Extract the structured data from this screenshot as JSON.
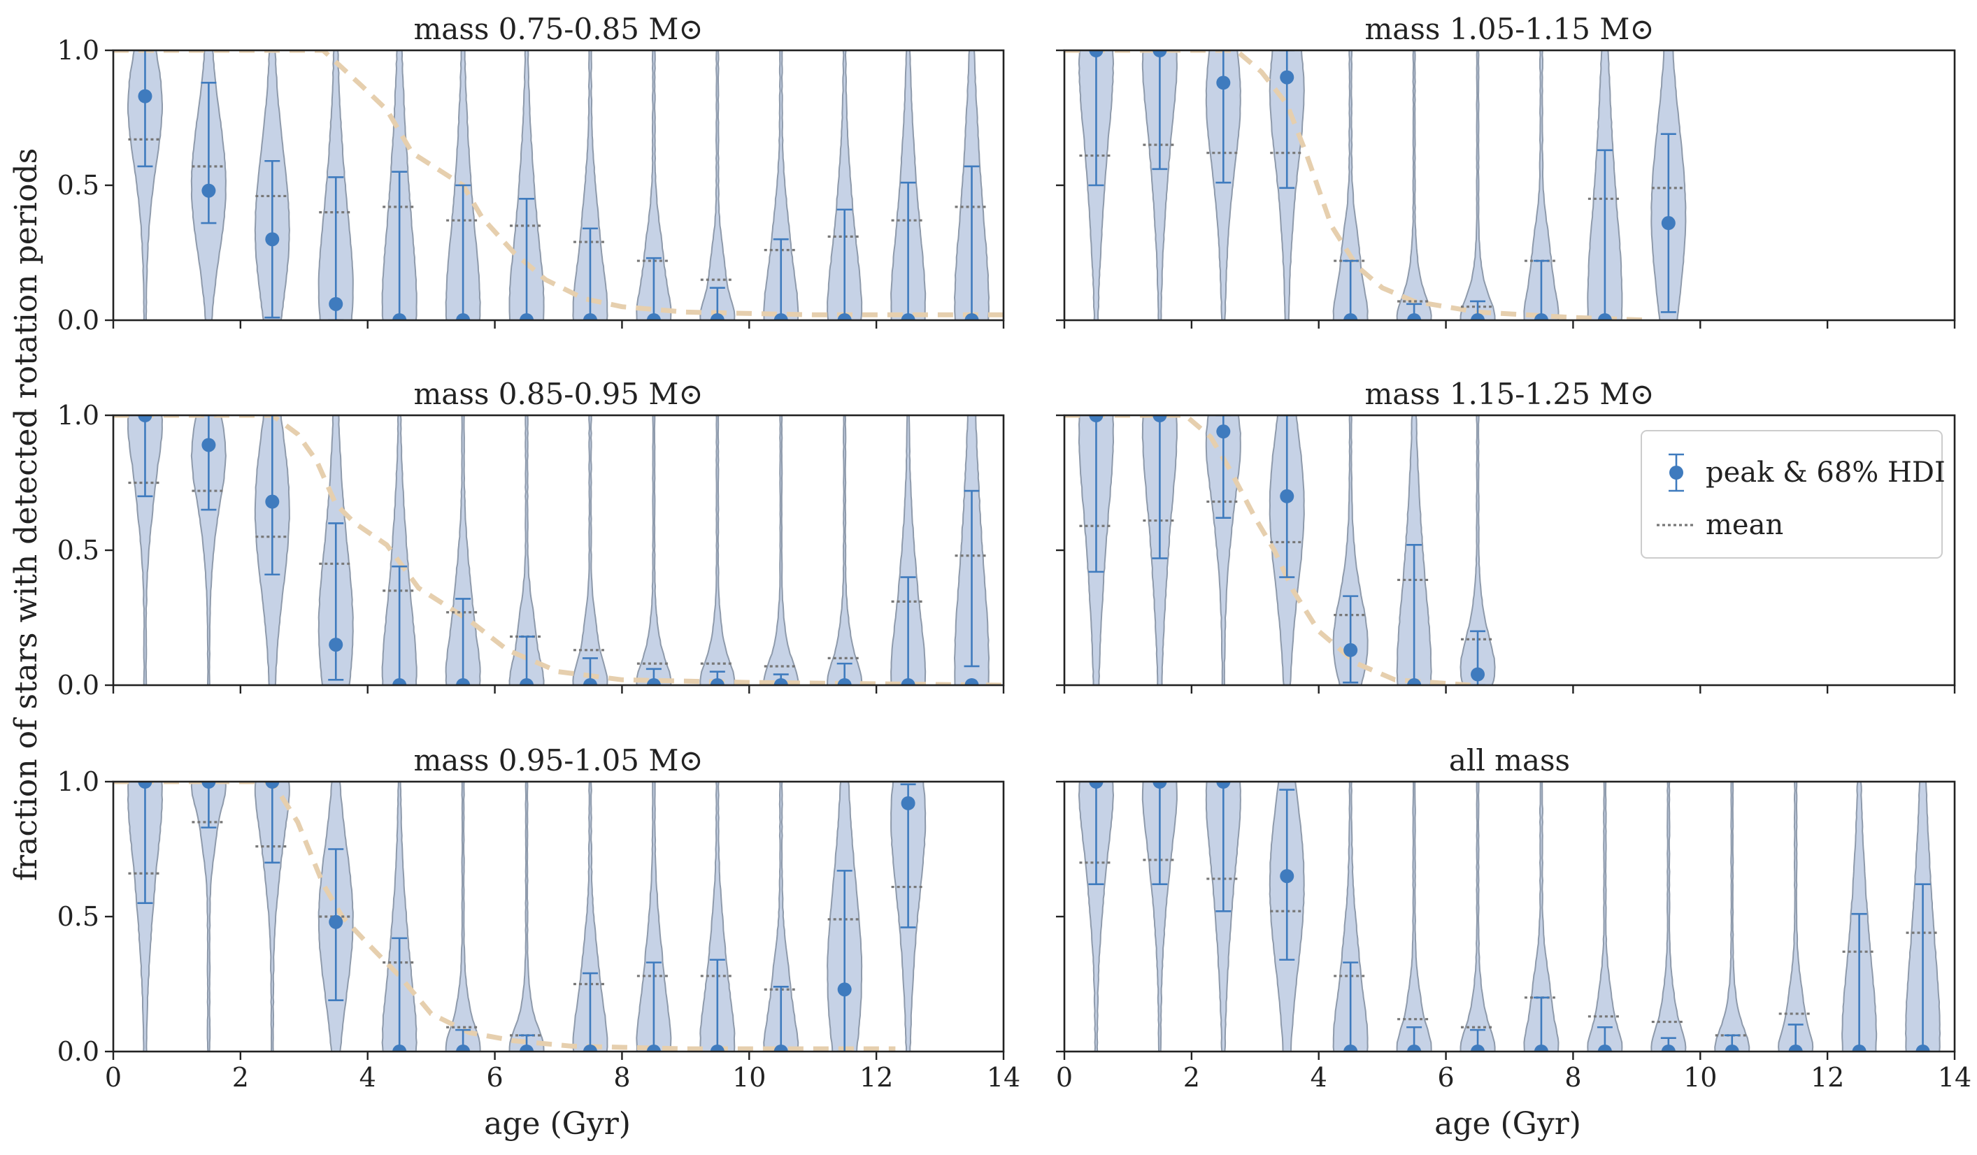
{
  "chart_data": {
    "type": "violin",
    "ylabel": "fraction of stars with detected rotation periods",
    "xlabel": "age (Gyr)",
    "xlim": [
      0,
      14
    ],
    "ylim": [
      0,
      1
    ],
    "x_ticks": [
      0,
      2,
      4,
      6,
      8,
      10,
      12,
      14
    ],
    "y_ticks": [
      0.0,
      0.5,
      1.0
    ],
    "y_tick_labels": [
      "0.0",
      "0.5",
      "1.0"
    ],
    "grid": false,
    "legend": {
      "placement": "upper-right of panel mass 1.15-1.25",
      "entries": [
        "peak & 68% HDI",
        "mean"
      ]
    },
    "colors": {
      "violin_fill": "#c6d2e6",
      "violin_edge": "#8e9aab",
      "marker": "#3f7bbe",
      "mean": "#777777",
      "model_curve": "#e6cfae"
    },
    "panels": [
      {
        "title": "mass 0.75-0.85 M⊙",
        "violins": [
          {
            "x": 0.5,
            "peak": 0.83,
            "lo": 0.57,
            "hi": 1.0,
            "mean": 0.67
          },
          {
            "x": 1.5,
            "peak": 0.48,
            "lo": 0.36,
            "hi": 0.88,
            "mean": 0.57
          },
          {
            "x": 2.5,
            "peak": 0.3,
            "lo": 0.01,
            "hi": 0.59,
            "mean": 0.46
          },
          {
            "x": 3.5,
            "peak": 0.06,
            "lo": 0.0,
            "hi": 0.53,
            "mean": 0.4
          },
          {
            "x": 4.5,
            "peak": 0.0,
            "lo": 0.0,
            "hi": 0.55,
            "mean": 0.42
          },
          {
            "x": 5.5,
            "peak": 0.0,
            "lo": 0.0,
            "hi": 0.5,
            "mean": 0.37
          },
          {
            "x": 6.5,
            "peak": 0.0,
            "lo": 0.0,
            "hi": 0.45,
            "mean": 0.35
          },
          {
            "x": 7.5,
            "peak": 0.0,
            "lo": 0.0,
            "hi": 0.34,
            "mean": 0.29
          },
          {
            "x": 8.5,
            "peak": 0.0,
            "lo": 0.0,
            "hi": 0.23,
            "mean": 0.22
          },
          {
            "x": 9.5,
            "peak": 0.0,
            "lo": 0.0,
            "hi": 0.12,
            "mean": 0.15
          },
          {
            "x": 10.5,
            "peak": 0.0,
            "lo": 0.0,
            "hi": 0.3,
            "mean": 0.26
          },
          {
            "x": 11.5,
            "peak": 0.0,
            "lo": 0.0,
            "hi": 0.41,
            "mean": 0.31
          },
          {
            "x": 12.5,
            "peak": 0.0,
            "lo": 0.0,
            "hi": 0.51,
            "mean": 0.37
          },
          {
            "x": 13.5,
            "peak": 0.0,
            "lo": 0.0,
            "hi": 0.57,
            "mean": 0.42
          }
        ],
        "model_curve": [
          [
            0,
            1.0
          ],
          [
            3.3,
            1.0
          ],
          [
            3.9,
            0.87
          ],
          [
            4.3,
            0.78
          ],
          [
            4.7,
            0.62
          ],
          [
            5.1,
            0.56
          ],
          [
            5.5,
            0.5
          ],
          [
            5.8,
            0.38
          ],
          [
            6.3,
            0.25
          ],
          [
            6.8,
            0.15
          ],
          [
            7.4,
            0.08
          ],
          [
            8,
            0.05
          ],
          [
            9,
            0.03
          ],
          [
            11,
            0.02
          ],
          [
            14,
            0.02
          ]
        ]
      },
      {
        "title": "mass 1.05-1.15 M⊙",
        "violins": [
          {
            "x": 0.5,
            "peak": 1.0,
            "lo": 0.5,
            "hi": 1.0,
            "mean": 0.61
          },
          {
            "x": 1.5,
            "peak": 1.0,
            "lo": 0.56,
            "hi": 1.0,
            "mean": 0.65
          },
          {
            "x": 2.5,
            "peak": 0.88,
            "lo": 0.51,
            "hi": 1.0,
            "mean": 0.62
          },
          {
            "x": 3.5,
            "peak": 0.9,
            "lo": 0.49,
            "hi": 1.0,
            "mean": 0.62
          },
          {
            "x": 4.5,
            "peak": 0.0,
            "lo": 0.0,
            "hi": 0.22,
            "mean": 0.22
          },
          {
            "x": 5.5,
            "peak": 0.0,
            "lo": 0.0,
            "hi": 0.06,
            "mean": 0.07
          },
          {
            "x": 6.5,
            "peak": 0.0,
            "lo": 0.0,
            "hi": 0.07,
            "mean": 0.05
          },
          {
            "x": 7.5,
            "peak": 0.0,
            "lo": 0.0,
            "hi": 0.22,
            "mean": 0.22
          },
          {
            "x": 8.5,
            "peak": 0.0,
            "lo": 0.0,
            "hi": 0.63,
            "mean": 0.45
          },
          {
            "x": 9.5,
            "peak": 0.36,
            "lo": 0.03,
            "hi": 0.69,
            "mean": 0.49
          }
        ],
        "model_curve": [
          [
            0,
            1.0
          ],
          [
            2.7,
            1.0
          ],
          [
            3.1,
            0.92
          ],
          [
            3.5,
            0.8
          ],
          [
            3.8,
            0.62
          ],
          [
            4.2,
            0.35
          ],
          [
            4.6,
            0.2
          ],
          [
            5.0,
            0.12
          ],
          [
            5.5,
            0.07
          ],
          [
            6.5,
            0.03
          ],
          [
            8.0,
            0.01
          ],
          [
            9.2,
            0.0
          ]
        ]
      },
      {
        "title": "mass 0.85-0.95 M⊙",
        "violins": [
          {
            "x": 0.5,
            "peak": 1.0,
            "lo": 0.7,
            "hi": 1.0,
            "mean": 0.75
          },
          {
            "x": 1.5,
            "peak": 0.89,
            "lo": 0.65,
            "hi": 1.0,
            "mean": 0.72
          },
          {
            "x": 2.5,
            "peak": 0.68,
            "lo": 0.41,
            "hi": 1.0,
            "mean": 0.55
          },
          {
            "x": 3.5,
            "peak": 0.15,
            "lo": 0.02,
            "hi": 0.6,
            "mean": 0.45
          },
          {
            "x": 4.5,
            "peak": 0.0,
            "lo": 0.0,
            "hi": 0.44,
            "mean": 0.35
          },
          {
            "x": 5.5,
            "peak": 0.0,
            "lo": 0.0,
            "hi": 0.32,
            "mean": 0.27
          },
          {
            "x": 6.5,
            "peak": 0.0,
            "lo": 0.0,
            "hi": 0.18,
            "mean": 0.18
          },
          {
            "x": 7.5,
            "peak": 0.0,
            "lo": 0.0,
            "hi": 0.1,
            "mean": 0.13
          },
          {
            "x": 8.5,
            "peak": 0.0,
            "lo": 0.0,
            "hi": 0.06,
            "mean": 0.08
          },
          {
            "x": 9.5,
            "peak": 0.0,
            "lo": 0.0,
            "hi": 0.05,
            "mean": 0.08
          },
          {
            "x": 10.5,
            "peak": 0.0,
            "lo": 0.0,
            "hi": 0.04,
            "mean": 0.07
          },
          {
            "x": 11.5,
            "peak": 0.0,
            "lo": 0.0,
            "hi": 0.08,
            "mean": 0.1
          },
          {
            "x": 12.5,
            "peak": 0.0,
            "lo": 0.0,
            "hi": 0.4,
            "mean": 0.31
          },
          {
            "x": 13.5,
            "peak": 0.0,
            "lo": 0.07,
            "hi": 0.72,
            "mean": 0.48
          }
        ],
        "model_curve": [
          [
            0,
            1.0
          ],
          [
            2.5,
            1.0
          ],
          [
            2.9,
            0.93
          ],
          [
            3.2,
            0.83
          ],
          [
            3.5,
            0.67
          ],
          [
            3.8,
            0.6
          ],
          [
            4.3,
            0.52
          ],
          [
            4.8,
            0.36
          ],
          [
            5.2,
            0.3
          ],
          [
            5.6,
            0.24
          ],
          [
            6.2,
            0.13
          ],
          [
            7.0,
            0.05
          ],
          [
            8.0,
            0.02
          ],
          [
            10,
            0.01
          ],
          [
            14,
            0.0
          ]
        ]
      },
      {
        "title": "mass 1.15-1.25 M⊙",
        "violins": [
          {
            "x": 0.5,
            "peak": 1.0,
            "lo": 0.42,
            "hi": 1.0,
            "mean": 0.59
          },
          {
            "x": 1.5,
            "peak": 1.0,
            "lo": 0.47,
            "hi": 1.0,
            "mean": 0.61
          },
          {
            "x": 2.5,
            "peak": 0.94,
            "lo": 0.62,
            "hi": 1.0,
            "mean": 0.68
          },
          {
            "x": 3.5,
            "peak": 0.7,
            "lo": 0.4,
            "hi": 1.0,
            "mean": 0.53
          },
          {
            "x": 4.5,
            "peak": 0.13,
            "lo": 0.01,
            "hi": 0.33,
            "mean": 0.26
          },
          {
            "x": 5.5,
            "peak": 0.0,
            "lo": 0.0,
            "hi": 0.52,
            "mean": 0.39
          },
          {
            "x": 6.5,
            "peak": 0.04,
            "lo": 0.0,
            "hi": 0.2,
            "mean": 0.17
          }
        ],
        "model_curve": [
          [
            0,
            1.0
          ],
          [
            1.9,
            1.0
          ],
          [
            2.3,
            0.92
          ],
          [
            2.6,
            0.8
          ],
          [
            3.0,
            0.62
          ],
          [
            3.3,
            0.5
          ],
          [
            3.6,
            0.35
          ],
          [
            4.0,
            0.2
          ],
          [
            4.6,
            0.08
          ],
          [
            5.2,
            0.02
          ],
          [
            6.4,
            0.0
          ]
        ]
      },
      {
        "title": "mass 0.95-1.05 M⊙",
        "violins": [
          {
            "x": 0.5,
            "peak": 1.0,
            "lo": 0.55,
            "hi": 1.0,
            "mean": 0.66
          },
          {
            "x": 1.5,
            "peak": 1.0,
            "lo": 0.83,
            "hi": 1.0,
            "mean": 0.85
          },
          {
            "x": 2.5,
            "peak": 1.0,
            "lo": 0.7,
            "hi": 1.0,
            "mean": 0.76
          },
          {
            "x": 3.5,
            "peak": 0.48,
            "lo": 0.19,
            "hi": 0.75,
            "mean": 0.5
          },
          {
            "x": 4.5,
            "peak": 0.0,
            "lo": 0.0,
            "hi": 0.42,
            "mean": 0.33
          },
          {
            "x": 5.5,
            "peak": 0.0,
            "lo": 0.0,
            "hi": 0.08,
            "mean": 0.09
          },
          {
            "x": 6.5,
            "peak": 0.0,
            "lo": 0.0,
            "hi": 0.06,
            "mean": 0.06
          },
          {
            "x": 7.5,
            "peak": 0.0,
            "lo": 0.0,
            "hi": 0.29,
            "mean": 0.25
          },
          {
            "x": 8.5,
            "peak": 0.0,
            "lo": 0.0,
            "hi": 0.33,
            "mean": 0.28
          },
          {
            "x": 9.5,
            "peak": 0.0,
            "lo": 0.0,
            "hi": 0.34,
            "mean": 0.28
          },
          {
            "x": 10.5,
            "peak": 0.0,
            "lo": 0.0,
            "hi": 0.24,
            "mean": 0.23
          },
          {
            "x": 11.5,
            "peak": 0.23,
            "lo": 0.0,
            "hi": 0.67,
            "mean": 0.49
          },
          {
            "x": 12.5,
            "peak": 0.92,
            "lo": 0.46,
            "hi": 0.99,
            "mean": 0.61
          }
        ],
        "model_curve": [
          [
            0,
            1.0
          ],
          [
            2.5,
            1.0
          ],
          [
            2.9,
            0.85
          ],
          [
            3.3,
            0.62
          ],
          [
            3.6,
            0.5
          ],
          [
            4.0,
            0.4
          ],
          [
            4.5,
            0.28
          ],
          [
            5.0,
            0.14
          ],
          [
            5.6,
            0.07
          ],
          [
            6.3,
            0.04
          ],
          [
            7.2,
            0.02
          ],
          [
            9,
            0.01
          ],
          [
            12.3,
            0.01
          ]
        ]
      },
      {
        "title": "all mass",
        "violins": [
          {
            "x": 0.5,
            "peak": 1.0,
            "lo": 0.62,
            "hi": 1.0,
            "mean": 0.7
          },
          {
            "x": 1.5,
            "peak": 1.0,
            "lo": 0.62,
            "hi": 1.0,
            "mean": 0.71
          },
          {
            "x": 2.5,
            "peak": 1.0,
            "lo": 0.52,
            "hi": 1.0,
            "mean": 0.64
          },
          {
            "x": 3.5,
            "peak": 0.65,
            "lo": 0.34,
            "hi": 0.97,
            "mean": 0.52
          },
          {
            "x": 4.5,
            "peak": 0.0,
            "lo": 0.0,
            "hi": 0.33,
            "mean": 0.28
          },
          {
            "x": 5.5,
            "peak": 0.0,
            "lo": 0.0,
            "hi": 0.09,
            "mean": 0.12
          },
          {
            "x": 6.5,
            "peak": 0.0,
            "lo": 0.0,
            "hi": 0.08,
            "mean": 0.09
          },
          {
            "x": 7.5,
            "peak": 0.0,
            "lo": 0.0,
            "hi": 0.2,
            "mean": 0.2
          },
          {
            "x": 8.5,
            "peak": 0.0,
            "lo": 0.0,
            "hi": 0.09,
            "mean": 0.13
          },
          {
            "x": 9.5,
            "peak": 0.0,
            "lo": 0.0,
            "hi": 0.05,
            "mean": 0.11
          },
          {
            "x": 10.5,
            "peak": 0.0,
            "lo": 0.0,
            "hi": 0.06,
            "mean": 0.06
          },
          {
            "x": 11.5,
            "peak": 0.0,
            "lo": 0.0,
            "hi": 0.1,
            "mean": 0.14
          },
          {
            "x": 12.5,
            "peak": 0.0,
            "lo": 0.0,
            "hi": 0.51,
            "mean": 0.37
          },
          {
            "x": 13.5,
            "peak": 0.0,
            "lo": 0.0,
            "hi": 0.62,
            "mean": 0.44
          }
        ],
        "model_curve": []
      }
    ]
  }
}
